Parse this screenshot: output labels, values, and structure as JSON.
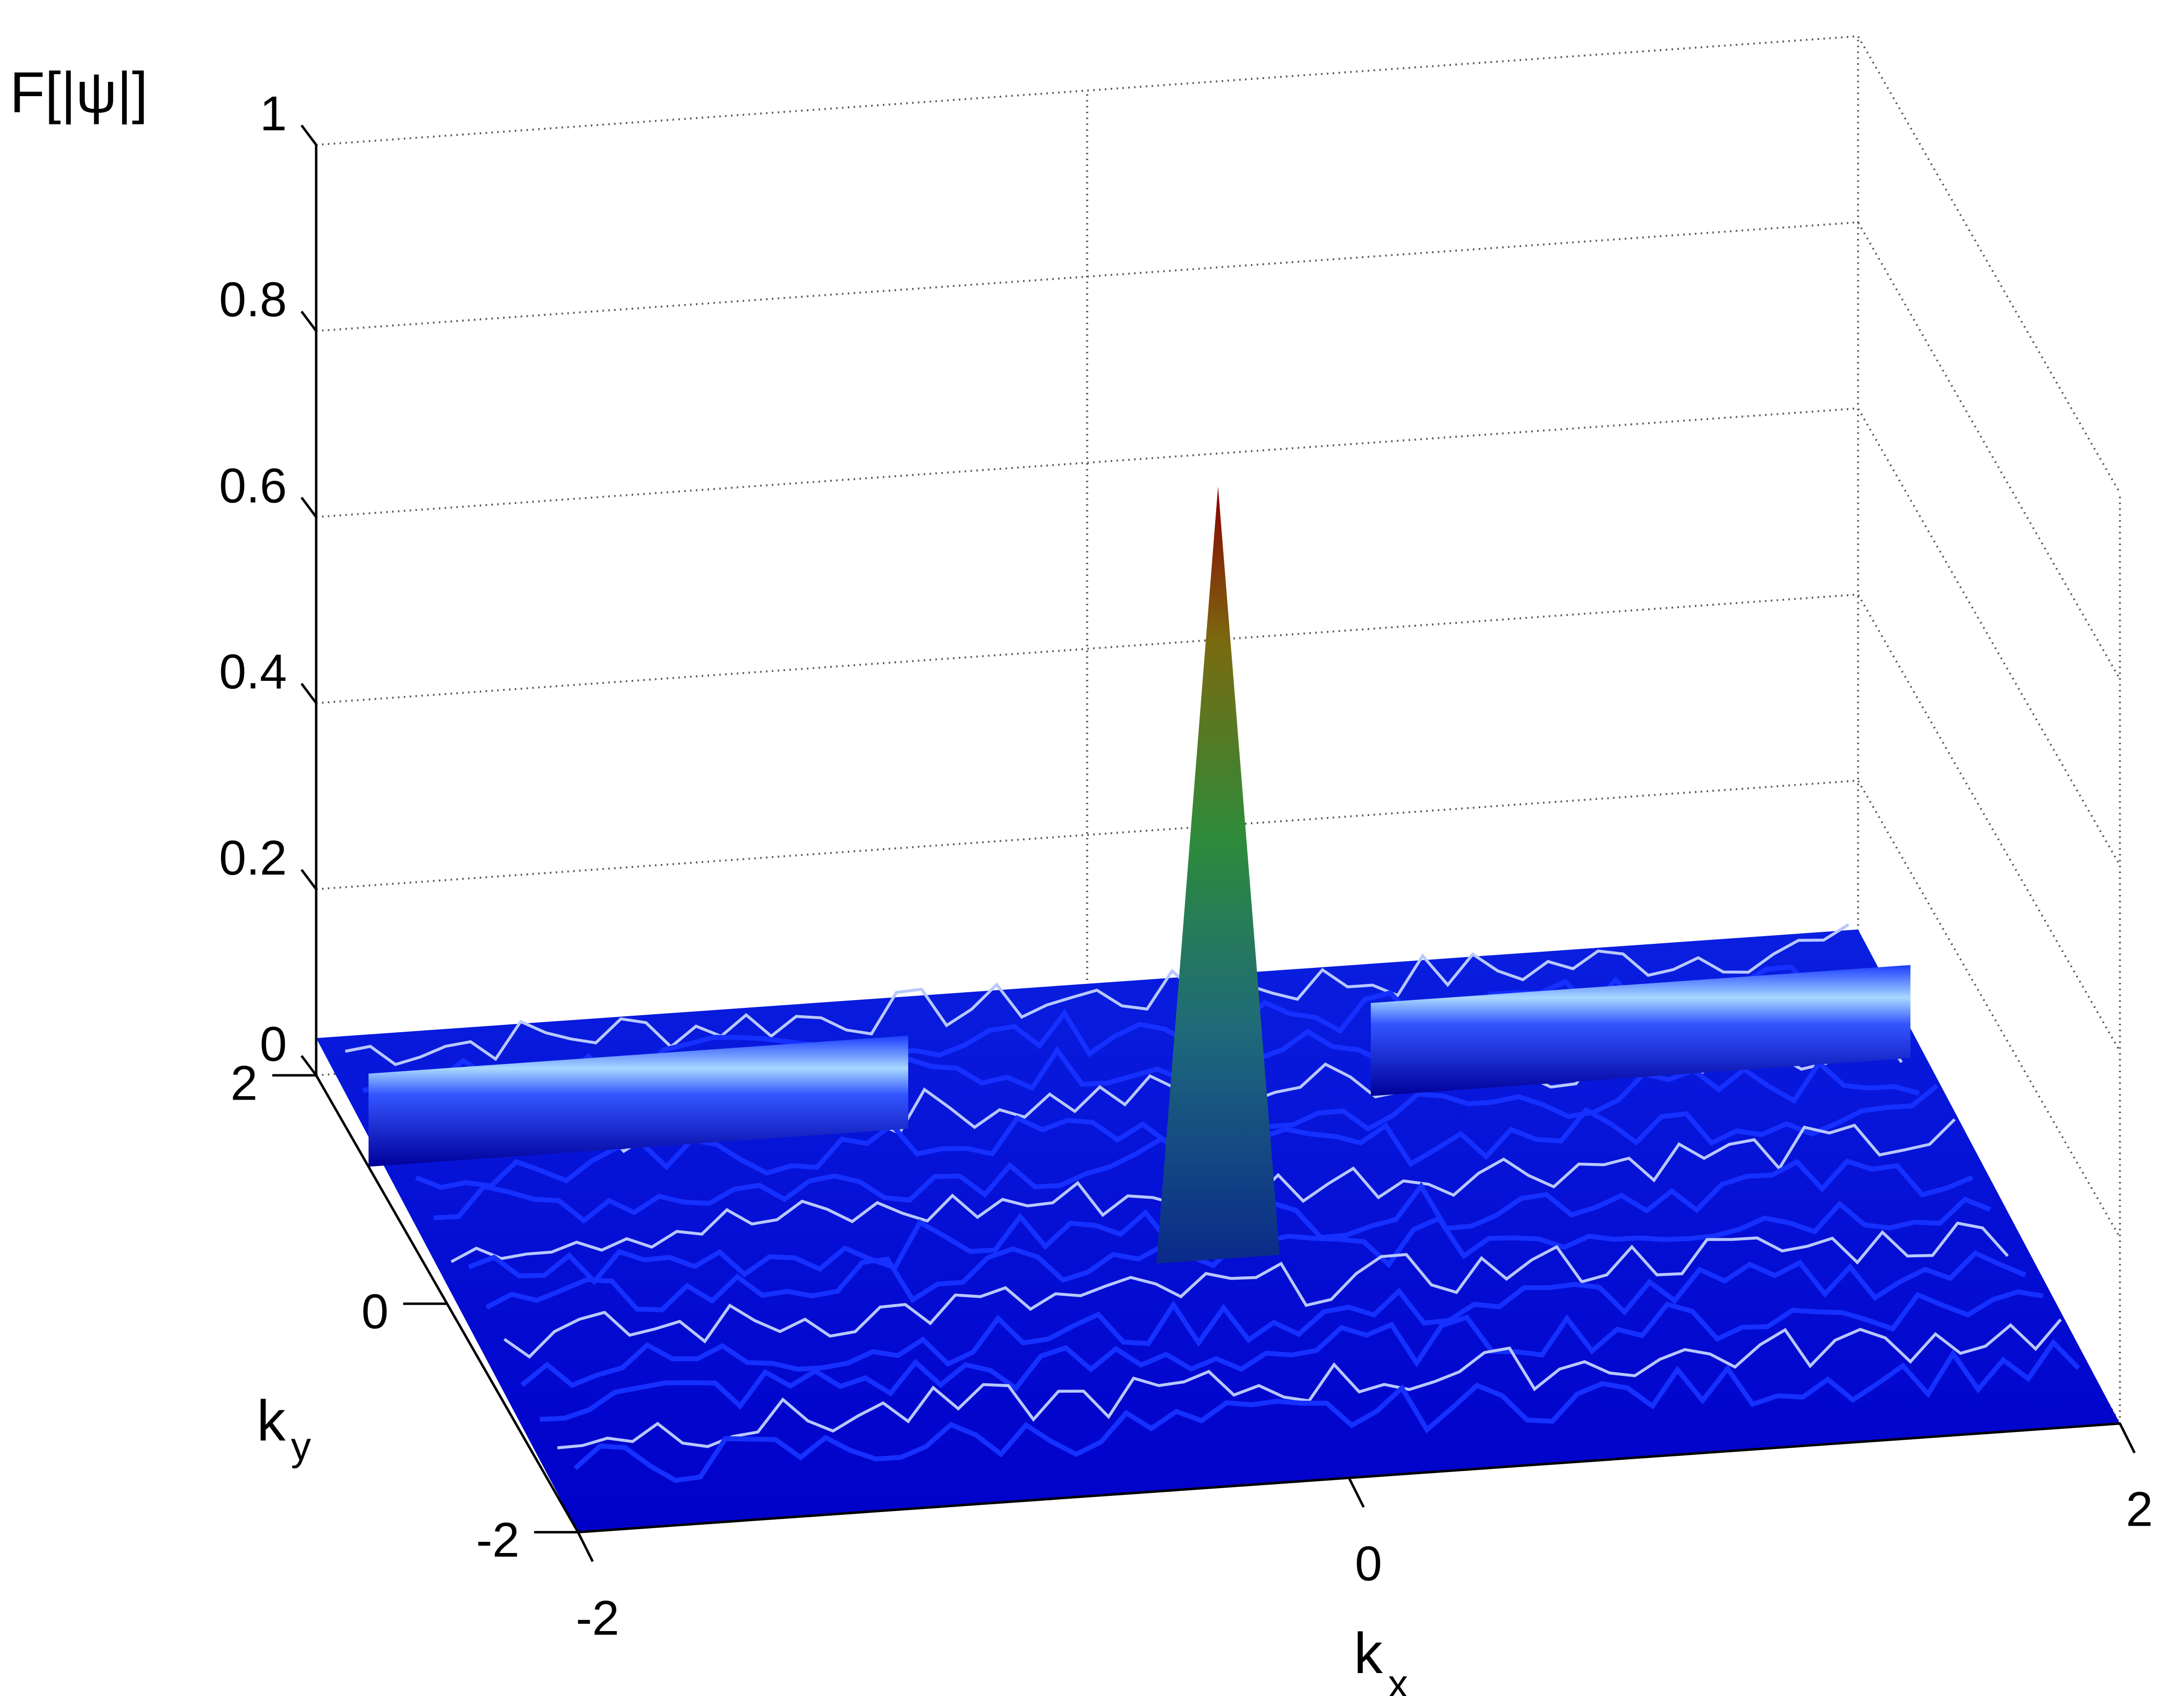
{
  "chart_data": {
    "type": "surface",
    "zlabel": "F[|ψ|]",
    "xlabel_main": "k",
    "xlabel_sub": "x",
    "ylabel_main": "k",
    "ylabel_sub": "y",
    "xlim": [
      -2,
      2
    ],
    "ylim": [
      -2,
      2
    ],
    "zlim": [
      0,
      1
    ],
    "x_ticks": [
      "-2",
      "0",
      "2"
    ],
    "y_ticks": [
      "-2",
      "0",
      "2"
    ],
    "z_ticks": [
      "0",
      "0.2",
      "0.4",
      "0.6",
      "0.8",
      "1"
    ],
    "grid": true,
    "box": "dotted",
    "colormap": "jet",
    "peak": {
      "kx": 0,
      "ky": 0,
      "value": 0.82
    },
    "background_level": 0.04,
    "ridges": [
      {
        "ky": 1.2,
        "kx_range": [
          -2,
          -0.6
        ],
        "value": 0.1
      },
      {
        "ky": 1.2,
        "kx_range": [
          0.6,
          2
        ],
        "value": 0.1
      }
    ]
  },
  "colors": {
    "low": "#0000ff",
    "mid": "#2e8b3a",
    "high": "#8b0000",
    "grid": "#555555"
  }
}
